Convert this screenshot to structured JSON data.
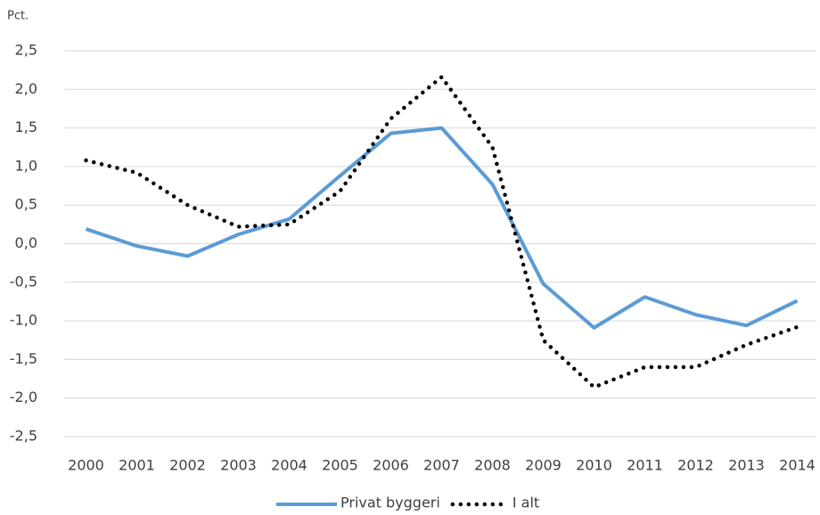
{
  "chart_data": {
    "type": "line",
    "y_label": "Pct.",
    "categories": [
      "2000",
      "2001",
      "2002",
      "2003",
      "2004",
      "2005",
      "2006",
      "2007",
      "2008",
      "2009",
      "2010",
      "2011",
      "2012",
      "2013",
      "2014"
    ],
    "series": [
      {
        "name": "Privat byggeri",
        "color": "#5b9bd5",
        "style": "solid",
        "values": [
          0.19,
          -0.03,
          -0.16,
          0.12,
          0.32,
          0.88,
          1.43,
          1.5,
          0.77,
          -0.52,
          -1.09,
          -0.69,
          -0.92,
          -1.06,
          -0.74
        ]
      },
      {
        "name": "I alt",
        "color": "#000000",
        "style": "dotted",
        "values": [
          1.08,
          0.92,
          0.5,
          0.22,
          0.25,
          0.68,
          1.62,
          2.16,
          1.25,
          -1.25,
          -1.86,
          -1.6,
          -1.6,
          -1.31,
          -1.08
        ]
      }
    ],
    "ylim": [
      -2.5,
      2.5
    ],
    "yticks": [
      {
        "value": -2.5,
        "label": "-2,5"
      },
      {
        "value": -2,
        "label": "-2,0"
      },
      {
        "value": -1.5,
        "label": "-1,5"
      },
      {
        "value": -1,
        "label": "-1,0"
      },
      {
        "value": -0.5,
        "label": "-0,5"
      },
      {
        "value": 0,
        "label": "0,0"
      },
      {
        "value": 0.5,
        "label": "0,5"
      },
      {
        "value": 1,
        "label": "1,0"
      },
      {
        "value": 1.5,
        "label": "1,5"
      },
      {
        "value": 2,
        "label": "2,0"
      },
      {
        "value": 2.5,
        "label": "2,5"
      }
    ],
    "grid": true
  }
}
